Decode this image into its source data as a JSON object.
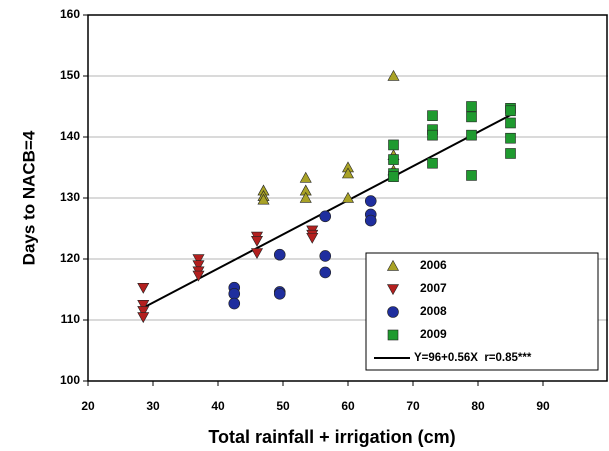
{
  "chart_data": {
    "type": "scatter",
    "x_label": "Total rainfall + irrigation (cm)",
    "y_label": "Days to NACB=4",
    "xlim": [
      20,
      100
    ],
    "xticks": [
      20,
      30,
      40,
      50,
      60,
      70,
      80,
      90
    ],
    "ylim": [
      100,
      160
    ],
    "yticks": [
      100,
      110,
      120,
      130,
      140,
      150,
      160
    ],
    "grid": true,
    "legend": "lower right",
    "series": [
      {
        "name": "2006",
        "color": "#a9a226",
        "marker": "triangle-up",
        "x": [
          47,
          47,
          47,
          53.5,
          53.5,
          53.5,
          60,
          60,
          60,
          67,
          67,
          67
        ],
        "values": [
          131.2,
          130.3,
          129.7,
          133.3,
          131.2,
          130,
          135,
          134,
          130,
          150,
          137,
          134.5
        ]
      },
      {
        "name": "2007",
        "color": "#b3201f",
        "marker": "triangle-down",
        "x": [
          28.5,
          28.5,
          28.5,
          28.5,
          37,
          37,
          37,
          37,
          46,
          46,
          46,
          54.5,
          54.5,
          54.5
        ],
        "values": [
          115.3,
          112.5,
          111.5,
          110.5,
          120,
          119,
          118,
          117.3,
          123.7,
          123,
          121,
          124.7,
          124,
          123.5
        ]
      },
      {
        "name": "2008",
        "color": "#1f2e9e",
        "marker": "circle",
        "x": [
          42.5,
          42.5,
          42.5,
          49.5,
          49.5,
          49.5,
          56.5,
          56.5,
          56.5,
          63.5,
          63.5,
          63.5
        ],
        "values": [
          115.3,
          114.3,
          112.7,
          120.7,
          114.6,
          114.3,
          127,
          120.5,
          117.8,
          129.5,
          127.3,
          126.3
        ]
      },
      {
        "name": "2009",
        "color": "#1f9a2f",
        "marker": "square",
        "x": [
          67,
          67,
          67,
          67,
          73,
          73,
          73,
          73,
          79,
          79,
          79,
          79,
          85,
          85,
          85,
          85,
          85
        ],
        "values": [
          138.7,
          136.3,
          134,
          133.5,
          143.5,
          141.2,
          140.3,
          135.7,
          145,
          143.3,
          140.3,
          133.7,
          144.7,
          144.3,
          142.3,
          139.8,
          137.3
        ]
      }
    ],
    "fit": {
      "name": "Y=96+0.56X  r=0.85***",
      "color": "#000000",
      "x": [
        28.5,
        85
      ],
      "values": [
        112,
        143.6
      ]
    }
  }
}
